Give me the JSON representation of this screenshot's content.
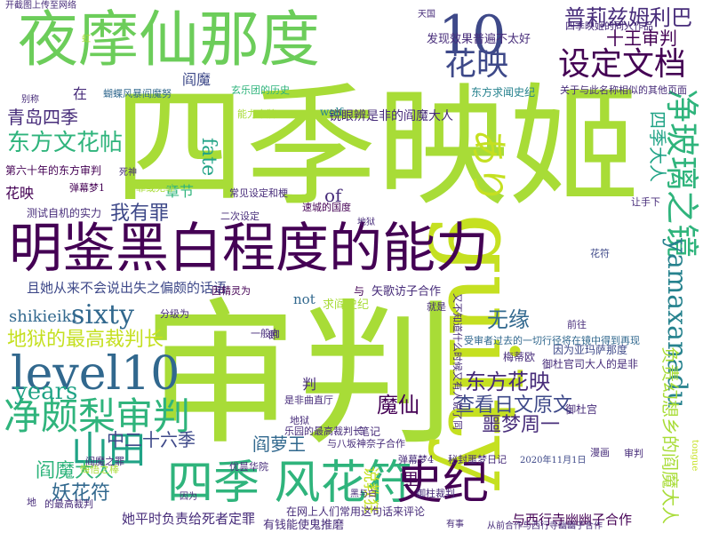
{
  "palette": {
    "lime": "#a8dc37",
    "yellow_green": "#c5e021",
    "green": "#6ccd5a",
    "teal_green": "#2fb47c",
    "teal": "#20a386",
    "blue_teal": "#26828e",
    "blue": "#31688e",
    "indigo": "#3e4989",
    "purple": "#472c7a",
    "dark_purple": "#440154"
  },
  "words": [
    {
      "text": "四季映姬",
      "color": "#a8dc37"
    },
    {
      "text": "审判",
      "color": "#a8dc37"
    },
    {
      "text": "guilty",
      "color": "#c5e021"
    },
    {
      "text": "夜摩仙那度",
      "color": "#6ccd5a"
    },
    {
      "text": "明鉴黑白程度的能力",
      "color": "#440154"
    },
    {
      "text": "10",
      "color": "#3e4989"
    },
    {
      "text": "level10",
      "color": "#31688e"
    },
    {
      "text": "四季 风花符",
      "color": "#2fb47c"
    },
    {
      "text": "史纪",
      "color": "#440154"
    },
    {
      "text": "净颇梨审判",
      "color": "#2fb47c"
    },
    {
      "text": "山田",
      "color": "#20a386"
    },
    {
      "text": "花映",
      "color": "#3e4989"
    },
    {
      "text": "设定文档",
      "color": "#440154"
    },
    {
      "text": "净玻璃之镜",
      "color": "#2fb47c"
    },
    {
      "text": "yamaxanadu",
      "color": "#26828e"
    },
    {
      "text": "普莉兹姆利巴",
      "color": "#472c7a"
    },
    {
      "text": "十王审判",
      "color": "#440154"
    },
    {
      "text": "sixty",
      "color": "#31688e"
    },
    {
      "text": "地狱的最高裁判长",
      "color": "#c5e021"
    },
    {
      "text": "years",
      "color": "#20a386"
    },
    {
      "text": "东方文花帖",
      "color": "#2fb47c"
    },
    {
      "text": "东方花映",
      "color": "#472c7a"
    },
    {
      "text": "查看日文原文",
      "color": "#3e4989"
    },
    {
      "text": "魔仙",
      "color": "#440154"
    },
    {
      "text": "中二十六季",
      "color": "#3e4989"
    },
    {
      "text": "阎魔大人",
      "color": "#2fb47c"
    },
    {
      "text": "妖花符",
      "color": "#31688e"
    },
    {
      "text": "阎萝王",
      "color": "#31688e"
    },
    {
      "text": "噩梦周一",
      "color": "#472c7a"
    },
    {
      "text": "あり",
      "color": "#c5e021"
    },
    {
      "text": "青岛四季",
      "color": "#472c7a"
    },
    {
      "text": "我有罪",
      "color": "#3e4989"
    },
    {
      "text": "fate",
      "color": "#20a386"
    },
    {
      "text": "无缘",
      "color": "#31688e"
    },
    {
      "text": "shikieiki",
      "color": "#31688e"
    },
    {
      "text": "发现效果普遍不太好",
      "color": "#472c7a"
    },
    {
      "text": "锐眼辨是非的阎魔大人",
      "color": "#472c7a"
    },
    {
      "text": "四季大人",
      "color": "#20a386"
    },
    {
      "text": "负责幻想乡的阎魔大人",
      "color": "#a8dc37"
    },
    {
      "text": "她平时负责给死者定罪",
      "color": "#472c7a"
    },
    {
      "text": "有钱能使鬼推磨",
      "color": "#472c7a"
    },
    {
      "text": "与西行寺幽幽子合作",
      "color": "#440154"
    },
    {
      "text": "章节",
      "color": "#2fb47c"
    },
    {
      "text": "of",
      "color": "#472c7a"
    },
    {
      "text": "not",
      "color": "#31688e"
    },
    {
      "text": "里",
      "color": "#440154"
    },
    {
      "text": "在",
      "color": "#472c7a"
    },
    {
      "text": "阎魔",
      "color": "#3e4989"
    },
    {
      "text": "蝴蝶风暴阎魔努",
      "color": "#31688e"
    },
    {
      "text": "求阎史纪",
      "color": "#a8dc37"
    },
    {
      "text": "玄乐团的历史",
      "color": "#2fb47c"
    },
    {
      "text": "东方求闻史纪",
      "color": "#26828e"
    },
    {
      "text": "能力卡牌",
      "color": "#a8dc37"
    },
    {
      "text": "wolf",
      "color": "#26828e"
    },
    {
      "text": "且她从来不会说出失之偏颇的话语",
      "color": "#3e4989"
    },
    {
      "text": "矢歌访子合作",
      "color": "#472c7a"
    },
    {
      "text": "与",
      "color": "#440154"
    },
    {
      "text": "测试自机的实力",
      "color": "#472c7a"
    },
    {
      "text": "第六十年的东方审判",
      "color": "#440154"
    },
    {
      "text": "说教狂",
      "color": "#c5e021"
    },
    {
      "text": "笔记",
      "color": "#472c7a"
    },
    {
      "text": "乐园的最高裁判长",
      "color": "#472c7a"
    },
    {
      "text": "与八坂神奈子合作",
      "color": "#472c7a"
    },
    {
      "text": "一般向",
      "color": "#472c7a"
    },
    {
      "text": "是非曲直厅",
      "color": "#472c7a"
    },
    {
      "text": "御柱裁判",
      "color": "#472c7a"
    },
    {
      "text": "弹幕梦4",
      "color": "#472c7a"
    },
    {
      "text": "秘封噩梦日记",
      "color": "#472c7a"
    },
    {
      "text": "在网上人们常用这句话来评论",
      "color": "#472c7a"
    },
    {
      "text": "优昙华院",
      "color": "#472c7a"
    },
    {
      "text": "悔悟之棒",
      "color": "#a8dc37"
    },
    {
      "text": "受审者过去的一切行径将在镜中得到再现",
      "color": "#31688e"
    },
    {
      "text": "二次设定",
      "color": "#472c7a"
    },
    {
      "text": "常见设定和梗",
      "color": "#472c7a"
    },
    {
      "text": "四季映姬的同人作品",
      "color": "#472c7a"
    },
    {
      "text": "开截图上传至网络",
      "color": "#472c7a"
    },
    {
      "text": "别称",
      "color": "#472c7a"
    },
    {
      "text": "弹幕梦1",
      "color": "#440154"
    },
    {
      "text": "有罪或无罪",
      "color": "#a8dc37"
    },
    {
      "text": "速城的国度",
      "color": "#440154"
    },
    {
      "text": "关于与此名称相似的其他页面",
      "color": "#472c7a"
    },
    {
      "text": "因为亚玛萨那度",
      "color": "#3e4989"
    },
    {
      "text": "御杜官司大人的是非",
      "color": "#472c7a"
    },
    {
      "text": "梅蒂欧",
      "color": "#472c7a"
    },
    {
      "text": "御杜宫",
      "color": "#472c7a"
    },
    {
      "text": "花符",
      "color": "#3e4989"
    },
    {
      "text": "让手下",
      "color": "#472c7a"
    },
    {
      "text": "前往",
      "color": "#472c7a"
    },
    {
      "text": "分级为",
      "color": "#472c7a"
    },
    {
      "text": "就是",
      "color": "#472c7a"
    },
    {
      "text": "因精灵为",
      "color": "#440154"
    },
    {
      "text": "花映",
      "color": "#440154"
    },
    {
      "text": "地",
      "color": "#472c7a"
    },
    {
      "text": "判",
      "color": "#472c7a"
    },
    {
      "text": "即",
      "color": "#472c7a"
    },
    {
      "text": "地狱",
      "color": "#472c7a"
    },
    {
      "text": "的最高裁判",
      "color": "#472c7a"
    },
    {
      "text": "漫画",
      "color": "#472c7a"
    },
    {
      "text": "审判",
      "color": "#472c7a"
    },
    {
      "text": "tongue",
      "color": "#c5e021"
    },
    {
      "text": "虹",
      "color": "#a8dc37"
    },
    {
      "text": "有事",
      "color": "#472c7a"
    },
    {
      "text": "因为",
      "color": "#472c7a"
    },
    {
      "text": "黑与白",
      "color": "#472c7a"
    },
    {
      "text": "死神",
      "color": "#472c7a"
    },
    {
      "text": "阎魔之罪",
      "color": "#472c7a"
    },
    {
      "text": "天国",
      "color": "#472c7a"
    },
    {
      "text": "地狱",
      "color": "#472c7a"
    },
    {
      "text": "又不知道什么时候又有人说了同",
      "color": "#472c7a"
    },
    {
      "text": "从前合作与西行寺幽幽子合作",
      "color": "#472c7a"
    },
    {
      "text": "2020年11月1日",
      "color": "#3e4989"
    }
  ]
}
